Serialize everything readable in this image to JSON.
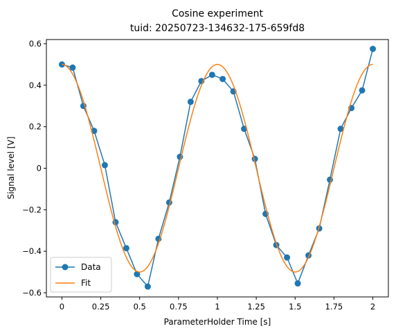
{
  "chart_data": {
    "type": "line",
    "title": "Cosine experiment",
    "subtitle": "tuid: 20250723-134632-175-659fd8",
    "xlabel": "ParameterHolder Time [s]",
    "ylabel": "Signal level [V]",
    "xlim": [
      -0.1,
      2.1
    ],
    "ylim": [
      -0.62,
      0.62
    ],
    "xticks": [
      0,
      0.25,
      0.5,
      0.75,
      1,
      1.25,
      1.5,
      1.75,
      2
    ],
    "xtick_labels": [
      "0",
      "0.25",
      "0.5",
      "0.75",
      "1",
      "1.25",
      "1.5",
      "1.75",
      "2"
    ],
    "yticks": [
      -0.6,
      -0.4,
      -0.2,
      0,
      0.2,
      0.4,
      0.6
    ],
    "ytick_labels": [
      "−0.6",
      "−0.4",
      "−0.2",
      "0",
      "0.2",
      "0.4",
      "0.6"
    ],
    "grid": false,
    "legend_position": "bottom-left",
    "series": [
      {
        "name": "Data",
        "style": "line-markers",
        "color": "#1f77b4",
        "x": [
          0,
          0.069,
          0.138,
          0.207,
          0.276,
          0.345,
          0.414,
          0.483,
          0.552,
          0.621,
          0.69,
          0.759,
          0.828,
          0.897,
          0.966,
          1.034,
          1.103,
          1.172,
          1.241,
          1.31,
          1.379,
          1.448,
          1.517,
          1.586,
          1.655,
          1.724,
          1.793,
          1.862,
          1.931,
          2.0
        ],
        "y": [
          0.5,
          0.485,
          0.3,
          0.18,
          0.015,
          -0.26,
          -0.385,
          -0.51,
          -0.57,
          -0.34,
          -0.165,
          0.055,
          0.32,
          0.42,
          0.45,
          0.43,
          0.37,
          0.19,
          0.045,
          -0.22,
          -0.37,
          -0.43,
          -0.555,
          -0.42,
          -0.29,
          -0.055,
          0.19,
          0.29,
          0.375,
          0.575
        ]
      },
      {
        "name": "Fit",
        "style": "line",
        "color": "#ff7f0e",
        "function": "cosine",
        "amplitude": 0.5,
        "frequency": 1.0,
        "offset": 0.0,
        "x_range": [
          0,
          2
        ]
      }
    ]
  }
}
